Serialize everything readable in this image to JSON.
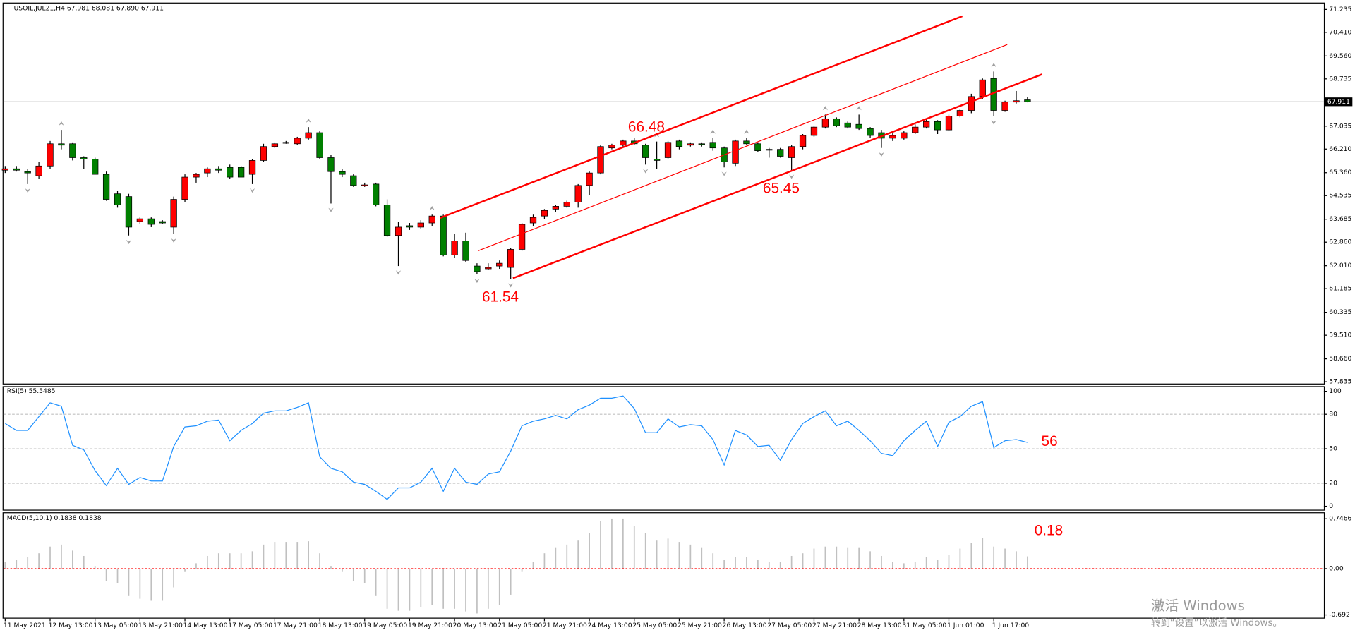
{
  "chart_data": [
    {
      "type": "candlestick",
      "title": "USOIL,JUL21,H4  67.981 68.081 67.890 67.911",
      "last_price": 67.911,
      "up_color": "#ff0000",
      "down_color": "#008000",
      "ylim": [
        57.77,
        71.45
      ],
      "yticks": [
        71.235,
        {
          "value": 70.41,
          "label": "70.410"
        },
        {
          "value": 69.56,
          "label": "69.560"
        },
        68.735,
        67.035,
        {
          "value": 66.21,
          "label": "66.210"
        },
        {
          "value": 65.36,
          "label": "65.360"
        },
        64.535,
        63.685,
        {
          "value": 62.86,
          "label": "62.860"
        },
        {
          "value": 62.01,
          "label": "62.010"
        },
        61.185,
        60.335,
        {
          "value": 59.51,
          "label": "59.510"
        },
        {
          "value": 58.66,
          "label": "58.660"
        },
        57.835
      ],
      "categories": [
        "11 May 2021",
        null,
        null,
        null,
        "12 May 13:00",
        null,
        null,
        null,
        "13 May 05:00",
        null,
        null,
        null,
        "13 May 21:00",
        null,
        null,
        null,
        "14 May 13:00",
        null,
        null,
        null,
        "17 May 05:00",
        null,
        null,
        null,
        "17 May 21:00",
        null,
        null,
        null,
        "18 May 13:00",
        null,
        null,
        null,
        "19 May 05:00",
        null,
        null,
        null,
        "19 May 21:00",
        null,
        null,
        null,
        "20 May 13:00",
        null,
        null,
        null,
        "21 May 05:00",
        null,
        null,
        null,
        "21 May 21:00",
        null,
        null,
        null,
        "24 May 13:00",
        null,
        null,
        null,
        "25 May 05:00",
        null,
        null,
        null,
        "25 May 21:00",
        null,
        null,
        null,
        "26 May 13:00",
        null,
        null,
        null,
        "27 May 05:00",
        null,
        null,
        null,
        "27 May 21:00",
        null,
        null,
        null,
        "28 May 13:00",
        null,
        null,
        null,
        "31 May 05:00",
        null,
        null,
        null,
        "1 Jun 01:00",
        null,
        null,
        null,
        "1 Jun 17:00",
        null,
        null,
        null
      ],
      "ohlc": [
        [
          65.45,
          65.6,
          65.35,
          65.5
        ],
        [
          65.5,
          65.6,
          65.4,
          65.45
        ],
        [
          65.4,
          65.5,
          64.95,
          65.35
        ],
        [
          65.25,
          65.75,
          65.15,
          65.6
        ],
        [
          65.6,
          66.5,
          65.5,
          66.4
        ],
        [
          66.4,
          66.9,
          66.2,
          66.35
        ],
        [
          66.4,
          66.45,
          65.8,
          65.9
        ],
        [
          65.9,
          65.95,
          65.5,
          65.85
        ],
        [
          65.85,
          65.9,
          65.3,
          65.3
        ],
        [
          65.3,
          65.4,
          64.35,
          64.4
        ],
        [
          64.6,
          64.7,
          64.1,
          64.2
        ],
        [
          64.5,
          64.6,
          63.1,
          63.4
        ],
        [
          63.6,
          63.75,
          63.5,
          63.7
        ],
        [
          63.7,
          63.75,
          63.4,
          63.5
        ],
        [
          63.6,
          63.65,
          63.5,
          63.55
        ],
        [
          63.4,
          64.5,
          63.15,
          64.4
        ],
        [
          64.4,
          65.3,
          64.3,
          65.2
        ],
        [
          65.2,
          65.35,
          65.0,
          65.3
        ],
        [
          65.35,
          65.55,
          65.2,
          65.5
        ],
        [
          65.5,
          65.6,
          65.35,
          65.45
        ],
        [
          65.55,
          65.65,
          65.15,
          65.2
        ],
        [
          65.55,
          65.6,
          65.2,
          65.2
        ],
        [
          65.3,
          65.85,
          64.95,
          65.8
        ],
        [
          65.8,
          66.4,
          65.75,
          66.3
        ],
        [
          66.3,
          66.45,
          66.25,
          66.4
        ],
        [
          66.45,
          66.5,
          66.4,
          66.45
        ],
        [
          66.4,
          66.65,
          66.35,
          66.6
        ],
        [
          66.6,
          67.0,
          66.55,
          66.8
        ],
        [
          66.8,
          66.85,
          65.85,
          65.9
        ],
        [
          65.9,
          66.0,
          64.25,
          65.4
        ],
        [
          65.4,
          65.5,
          65.2,
          65.3
        ],
        [
          65.25,
          65.3,
          64.85,
          64.9
        ],
        [
          64.9,
          65.0,
          64.85,
          64.92
        ],
        [
          64.95,
          65.0,
          64.15,
          64.2
        ],
        [
          64.2,
          64.4,
          63.05,
          63.1
        ],
        [
          63.1,
          63.6,
          62.0,
          63.4
        ],
        [
          63.45,
          63.55,
          63.3,
          63.4
        ],
        [
          63.4,
          63.65,
          63.35,
          63.55
        ],
        [
          63.55,
          63.85,
          63.45,
          63.8
        ],
        [
          63.8,
          63.85,
          62.35,
          62.4
        ],
        [
          62.4,
          63.15,
          62.3,
          62.9
        ],
        [
          62.9,
          63.2,
          62.15,
          62.2
        ],
        [
          62.0,
          62.1,
          61.7,
          61.8
        ],
        [
          61.9,
          62.1,
          61.85,
          61.95
        ],
        [
          62.0,
          62.2,
          61.9,
          62.1
        ],
        [
          61.95,
          62.65,
          61.54,
          62.6
        ],
        [
          62.6,
          63.55,
          62.55,
          63.5
        ],
        [
          63.55,
          63.85,
          63.45,
          63.75
        ],
        [
          63.8,
          64.05,
          63.7,
          64.0
        ],
        [
          64.05,
          64.2,
          63.95,
          64.15
        ],
        [
          64.15,
          64.35,
          64.1,
          64.3
        ],
        [
          64.3,
          64.95,
          64.1,
          64.9
        ],
        [
          64.9,
          65.4,
          64.55,
          65.35
        ],
        [
          65.35,
          66.35,
          65.3,
          66.3
        ],
        [
          66.25,
          66.4,
          66.2,
          66.35
        ],
        [
          66.35,
          66.55,
          66.3,
          66.5
        ],
        [
          66.5,
          66.6,
          66.35,
          66.4
        ],
        [
          66.35,
          66.4,
          65.65,
          65.9
        ],
        [
          65.85,
          66.48,
          65.5,
          65.8
        ],
        [
          65.9,
          66.5,
          65.85,
          66.45
        ],
        [
          66.5,
          66.55,
          66.2,
          66.3
        ],
        [
          66.35,
          66.45,
          66.3,
          66.4
        ],
        [
          66.4,
          66.45,
          66.3,
          66.38
        ],
        [
          66.45,
          66.6,
          66.15,
          66.25
        ],
        [
          66.25,
          66.3,
          65.55,
          65.75
        ],
        [
          65.7,
          66.55,
          65.6,
          66.5
        ],
        [
          66.5,
          66.6,
          66.35,
          66.4
        ],
        [
          66.4,
          66.45,
          66.1,
          66.15
        ],
        [
          66.2,
          66.25,
          65.9,
          66.2
        ],
        [
          66.2,
          66.25,
          65.9,
          65.95
        ],
        [
          65.9,
          66.35,
          65.45,
          66.3
        ],
        [
          66.3,
          66.75,
          66.2,
          66.7
        ],
        [
          66.7,
          67.05,
          66.65,
          67.0
        ],
        [
          67.0,
          67.45,
          66.95,
          67.3
        ],
        [
          67.3,
          67.35,
          67.0,
          67.05
        ],
        [
          67.15,
          67.2,
          66.95,
          67.0
        ],
        [
          67.1,
          67.45,
          66.9,
          66.95
        ],
        [
          66.95,
          67.0,
          66.6,
          66.7
        ],
        [
          66.8,
          66.9,
          66.25,
          66.6
        ],
        [
          66.6,
          66.85,
          66.5,
          66.7
        ],
        [
          66.6,
          66.85,
          66.55,
          66.8
        ],
        [
          66.8,
          67.1,
          66.75,
          67.0
        ],
        [
          67.0,
          67.3,
          66.95,
          67.2
        ],
        [
          67.2,
          67.25,
          66.75,
          66.9
        ],
        [
          66.9,
          67.45,
          66.85,
          67.4
        ],
        [
          67.4,
          67.65,
          67.35,
          67.6
        ],
        [
          67.6,
          68.2,
          67.5,
          68.1
        ],
        [
          68.1,
          68.75,
          68.0,
          68.7
        ],
        [
          68.75,
          69.0,
          67.4,
          67.6
        ],
        [
          67.6,
          67.95,
          67.55,
          67.9
        ],
        [
          67.9,
          68.3,
          67.85,
          67.95
        ],
        [
          67.981,
          68.081,
          67.89,
          67.911
        ]
      ],
      "fractals_up": [
        5,
        27,
        38,
        58,
        63,
        66,
        73,
        76,
        88
      ],
      "fractals_down": [
        2,
        11,
        15,
        22,
        29,
        35,
        42,
        45,
        57,
        64,
        70,
        78,
        88
      ],
      "trendlines": [
        {
          "color": "#ff0000",
          "width": 2,
          "points": [
            [
              38.7,
              63.73
            ],
            [
              85.2,
              70.99
            ]
          ]
        },
        {
          "color": "#ff0000",
          "width": 1,
          "points": [
            [
              42.1,
              62.55
            ],
            [
              89.2,
              69.97
            ]
          ]
        },
        {
          "color": "#ff0000",
          "width": 2,
          "points": [
            [
              45.2,
              61.56
            ],
            [
              92.3,
              68.9
            ]
          ]
        }
      ],
      "annotation_color": "#ff0000",
      "annotations": [
        {
          "value": 66.48,
          "candle": 58,
          "side": "above"
        },
        {
          "value": 61.54,
          "candle": 45,
          "side": "below"
        },
        {
          "value": 65.45,
          "candle": 70,
          "side": "below"
        }
      ]
    },
    {
      "type": "line",
      "title": "RSI(5) 55.5485",
      "color": "#1e90ff",
      "ylim": [
        -3,
        103.7
      ],
      "yticks": [
        100,
        80,
        50,
        20,
        0
      ],
      "levels": [
        80,
        50,
        20
      ],
      "values": [
        72,
        66,
        66,
        78,
        90,
        87,
        53,
        49,
        31,
        18,
        33,
        19,
        25,
        22,
        22,
        52,
        69,
        70,
        74,
        75,
        57,
        66,
        72,
        81,
        83,
        83,
        86,
        90,
        43,
        33,
        30,
        21,
        19,
        13,
        6,
        16,
        16,
        21,
        33,
        13,
        33,
        21,
        19,
        28,
        30,
        48,
        70,
        74,
        76,
        79,
        76,
        84,
        88,
        94,
        94,
        96,
        85,
        64,
        64,
        76,
        69,
        71,
        70,
        58,
        36,
        66,
        62,
        52,
        53,
        40,
        58,
        72,
        78,
        83,
        70,
        74,
        66,
        57,
        46,
        44,
        57,
        66,
        74,
        52,
        73,
        78,
        87,
        91,
        51,
        57,
        58,
        55.5485
      ],
      "annotation_color": "#ff0000",
      "annotation": 56
    },
    {
      "type": "macd",
      "title": "MACD(5,10,1) 0.1838 0.1838",
      "color": "#c0c0c0",
      "signal_color": "#ff0000",
      "ylim": [
        -0.734,
        0.83
      ],
      "yticks": [
        0.7466,
        {
          "value": 0,
          "label": "0.00"
        },
        -0.692
      ],
      "values": [
        0.1,
        0.13,
        0.17,
        0.23,
        0.33,
        0.36,
        0.27,
        0.19,
        0.04,
        -0.18,
        -0.22,
        -0.41,
        -0.45,
        -0.48,
        -0.48,
        -0.28,
        -0.05,
        0.08,
        0.19,
        0.23,
        0.23,
        0.23,
        0.26,
        0.36,
        0.4,
        0.4,
        0.4,
        0.41,
        0.23,
        0.04,
        -0.05,
        -0.18,
        -0.22,
        -0.41,
        -0.6,
        -0.63,
        -0.63,
        -0.58,
        -0.54,
        -0.6,
        -0.6,
        -0.64,
        -0.67,
        -0.6,
        -0.54,
        -0.39,
        -0.05,
        0.1,
        0.23,
        0.32,
        0.36,
        0.42,
        0.53,
        0.71,
        0.75,
        0.75,
        0.64,
        0.53,
        0.42,
        0.45,
        0.4,
        0.36,
        0.32,
        0.23,
        0.13,
        0.17,
        0.17,
        0.13,
        0.1,
        0.1,
        0.19,
        0.23,
        0.3,
        0.33,
        0.33,
        0.32,
        0.32,
        0.26,
        0.19,
        0.1,
        0.08,
        0.1,
        0.17,
        0.13,
        0.21,
        0.3,
        0.39,
        0.46,
        0.33,
        0.3,
        0.26,
        0.1838
      ],
      "annotation_color": "#ff0000",
      "annotation": 0.18
    }
  ],
  "watermark": {
    "title": "激活 Windows",
    "subtitle": "转到“设置”以激活 Windows。"
  }
}
